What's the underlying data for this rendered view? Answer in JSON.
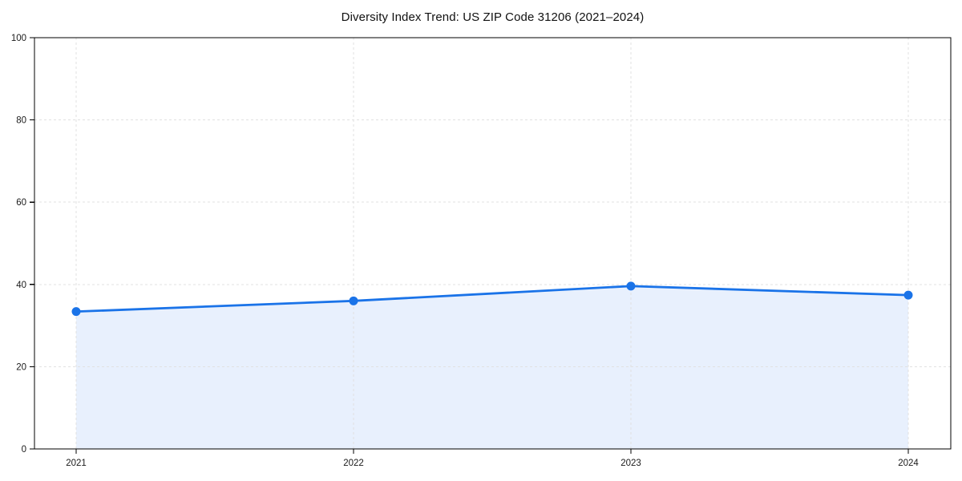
{
  "chart_data": {
    "type": "area",
    "title": "Diversity Index Trend: US ZIP Code 31206 (2021–2024)",
    "categories": [
      "2021",
      "2022",
      "2023",
      "2024"
    ],
    "series": [
      {
        "name": "Diversity Index",
        "values": [
          33.4,
          36.0,
          39.6,
          37.4
        ]
      }
    ],
    "xlabel": "",
    "ylabel": "",
    "ylim": [
      0,
      100
    ],
    "yticks": [
      0,
      20,
      40,
      60,
      80,
      100
    ],
    "grid": "dashed-both",
    "legend": "none",
    "marker": "circle",
    "colors": {
      "line": "#1a73e8",
      "fill": "#e8f0fd",
      "grid": "#e1e1e1",
      "axis": "#000000",
      "tick_text": "#1a1a1a",
      "background": "#ffffff"
    }
  }
}
